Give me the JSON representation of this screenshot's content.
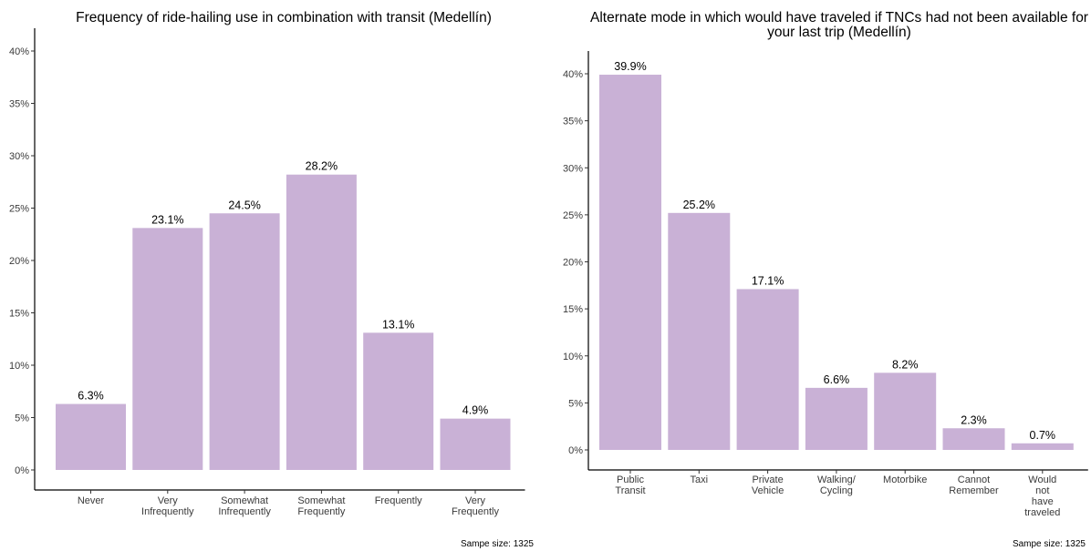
{
  "chart_data": [
    {
      "type": "bar",
      "title": "Frequency of ride-hailing use in combination with transit (Medellín)",
      "categories": [
        [
          "Never"
        ],
        [
          "Very",
          "Infrequently"
        ],
        [
          "Somewhat",
          "Infrequently"
        ],
        [
          "Somewhat",
          "Frequently"
        ],
        [
          "Frequently"
        ],
        [
          "Very",
          "Frequently"
        ]
      ],
      "values": [
        6.3,
        23.1,
        24.5,
        28.2,
        13.1,
        4.9
      ],
      "value_labels": [
        "6.3%",
        "23.1%",
        "24.5%",
        "28.2%",
        "13.1%",
        "4.9%"
      ],
      "ylim": [
        0,
        40
      ],
      "yticks": [
        0,
        5,
        10,
        15,
        20,
        25,
        30,
        35,
        40
      ],
      "ytick_labels": [
        "0%",
        "5%",
        "10%",
        "15%",
        "20%",
        "25%",
        "30%",
        "35%",
        "40%"
      ],
      "grid": false,
      "bar_color": "#c9b1d6",
      "note": "Sampe size: 1325"
    },
    {
      "type": "bar",
      "title": [
        "Alternate mode in which would have traveled if TNCs had not been available for",
        "your last trip (Medellín)"
      ],
      "categories": [
        [
          "Public",
          "Transit"
        ],
        [
          "Taxi"
        ],
        [
          "Private",
          "Vehicle"
        ],
        [
          "Walking/",
          "Cycling"
        ],
        [
          "Motorbike"
        ],
        [
          "Cannot",
          "Remember"
        ],
        [
          "Would",
          "not",
          "have",
          "traveled"
        ]
      ],
      "values": [
        39.9,
        25.2,
        17.1,
        6.6,
        8.2,
        2.3,
        0.7
      ],
      "value_labels": [
        "39.9%",
        "25.2%",
        "17.1%",
        "6.6%",
        "8.2%",
        "2.3%",
        "0.7%"
      ],
      "ylim": [
        0,
        40
      ],
      "yticks": [
        0,
        5,
        10,
        15,
        20,
        25,
        30,
        35,
        40
      ],
      "ytick_labels": [
        "0%",
        "5%",
        "10%",
        "15%",
        "20%",
        "25%",
        "30%",
        "35%",
        "40%"
      ],
      "grid": false,
      "bar_color": "#c9b1d6",
      "note": "Sampe size: 1325"
    }
  ]
}
